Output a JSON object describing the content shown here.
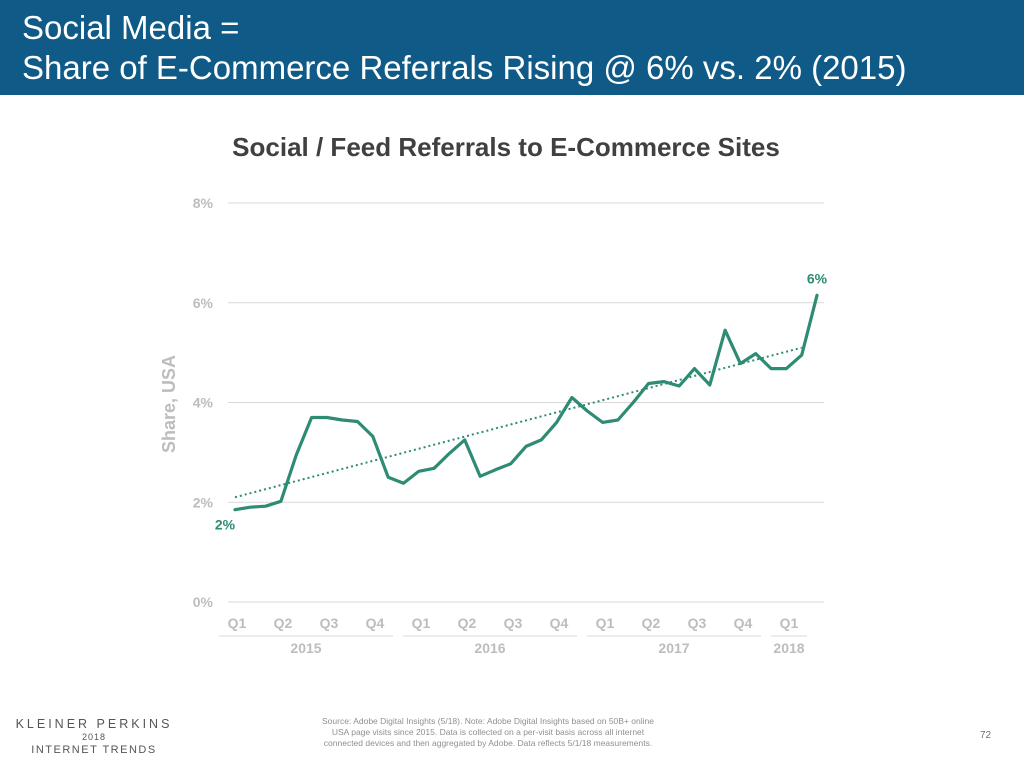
{
  "header": {
    "line1": "Social Media =",
    "line2": "Share of E-Commerce Referrals Rising @ 6% vs. 2% (2015)"
  },
  "colors": {
    "header_bg": "#0f5a86",
    "series": "#2e8b74",
    "axis_text": "#bdbdbd",
    "grid": "#d9d9d9"
  },
  "chart_data": {
    "type": "line",
    "title": "Social / Feed Referrals to E-Commerce Sites",
    "ylabel": "Share, USA",
    "xlabel": "",
    "ylim": [
      0,
      8
    ],
    "yticks": [
      "0%",
      "2%",
      "4%",
      "6%",
      "8%"
    ],
    "grid": true,
    "quarter_labels": [
      "Q1",
      "Q2",
      "Q3",
      "Q4",
      "Q1",
      "Q2",
      "Q3",
      "Q4",
      "Q1",
      "Q2",
      "Q3",
      "Q4",
      "Q1"
    ],
    "year_labels": [
      "2015",
      "2016",
      "2017",
      "2018"
    ],
    "year_quarter_counts": [
      4,
      4,
      4,
      1
    ],
    "series": [
      {
        "values": [
          1.85,
          1.9,
          1.92,
          2.02,
          2.95,
          3.7,
          3.7,
          3.65,
          3.62,
          3.32,
          2.5,
          2.38,
          2.62,
          2.68,
          2.98,
          3.25,
          2.52,
          2.65,
          2.77,
          3.12,
          3.25,
          3.6,
          4.1,
          3.83,
          3.6,
          3.65,
          4.0,
          4.38,
          4.42,
          4.33,
          4.68,
          4.35,
          5.45,
          4.78,
          4.98,
          4.68,
          4.68,
          4.95,
          6.15
        ]
      }
    ],
    "trendline": {
      "start": 2.1,
      "end": 5.1
    },
    "annotations": [
      {
        "text": "2%",
        "point": "first"
      },
      {
        "text": "6%",
        "point": "last"
      }
    ]
  },
  "footer": {
    "logo_line1": "KLEINER PERKINS",
    "logo_line2": "2018",
    "logo_line3": "INTERNET TRENDS",
    "source_line1": "Source: Adobe Digital Insights (5/18).  Note: Adobe Digital Insights based on 50B+ online",
    "source_line2": "USA page visits since 2015.  Data is collected on a per-visit basis across all internet",
    "source_line3": "connected devices and then aggregated by Adobe. Data reflects 5/1/18 measurements.",
    "page_number": "72"
  }
}
